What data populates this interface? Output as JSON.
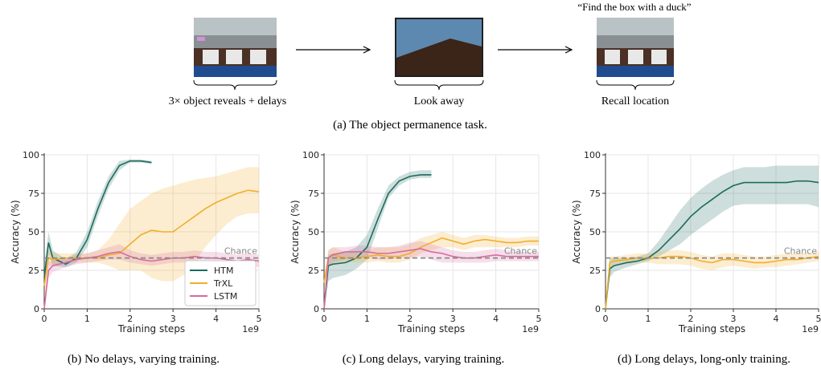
{
  "task": {
    "quote": "“Find the box with a duck”",
    "stages": [
      {
        "label": "3× object reveals + delays"
      },
      {
        "label": "Look away"
      },
      {
        "label": "Recall location"
      }
    ],
    "caption": "(a) The object permanence task."
  },
  "chart_data": [
    {
      "type": "line",
      "caption": "(b) No delays, varying training.",
      "xlabel": "Training steps",
      "ylabel": "Accuracy (%)",
      "x_offset_label": "1e9",
      "x": [
        0,
        0.1,
        0.2,
        0.5,
        0.75,
        1,
        1.25,
        1.5,
        1.75,
        2,
        2.25,
        2.5,
        2.75,
        3,
        3.25,
        3.5,
        3.75,
        4,
        4.25,
        4.5,
        4.75,
        5
      ],
      "xlim": [
        0,
        5
      ],
      "xticks": [
        0,
        1,
        2,
        3,
        4,
        5
      ],
      "ylim": [
        0,
        100
      ],
      "yticks": [
        0,
        25,
        50,
        75,
        100
      ],
      "grid": true,
      "legend": "lower right",
      "hline": 33,
      "hline_label": "Chance",
      "series": [
        {
          "name": "HTM",
          "color": "#1b6b5e",
          "values": [
            20,
            43,
            33,
            29,
            33,
            45,
            65,
            82,
            93,
            96,
            96,
            95,
            null,
            null,
            null,
            null,
            null,
            null,
            null,
            null,
            null,
            null
          ],
          "lower": [
            12,
            35,
            28,
            27,
            30,
            40,
            60,
            78,
            90,
            95,
            95,
            94,
            null,
            null,
            null,
            null,
            null,
            null,
            null,
            null,
            null,
            null
          ],
          "upper": [
            28,
            50,
            38,
            32,
            37,
            50,
            70,
            86,
            96,
            97,
            97,
            96,
            null,
            null,
            null,
            null,
            null,
            null,
            null,
            null,
            null,
            null
          ]
        },
        {
          "name": "TrXL",
          "color": "#f2ad2b",
          "values": [
            15,
            33,
            32,
            33,
            33,
            33,
            33,
            35,
            36,
            42,
            48,
            51,
            50,
            50,
            55,
            60,
            65,
            69,
            72,
            75,
            77,
            76
          ],
          "lower": [
            5,
            28,
            28,
            30,
            30,
            30,
            30,
            28,
            25,
            25,
            25,
            20,
            18,
            18,
            22,
            30,
            40,
            48,
            55,
            60,
            62,
            62
          ],
          "upper": [
            25,
            38,
            36,
            36,
            36,
            36,
            38,
            45,
            55,
            65,
            70,
            75,
            78,
            80,
            82,
            84,
            85,
            86,
            88,
            90,
            92,
            92
          ]
        },
        {
          "name": "LSTM",
          "color": "#d66aa0",
          "values": [
            0,
            25,
            28,
            30,
            32,
            33,
            34,
            36,
            37,
            34,
            32,
            31,
            32,
            33,
            33,
            34,
            33,
            33,
            32,
            31,
            32,
            31
          ],
          "lower": [
            0,
            20,
            24,
            27,
            29,
            30,
            31,
            32,
            32,
            30,
            29,
            28,
            29,
            30,
            30,
            30,
            30,
            29,
            28,
            27,
            28,
            27
          ],
          "upper": [
            5,
            30,
            32,
            33,
            35,
            36,
            38,
            40,
            42,
            38,
            36,
            35,
            36,
            37,
            37,
            38,
            37,
            37,
            36,
            35,
            36,
            35
          ]
        }
      ]
    },
    {
      "type": "line",
      "caption": "(c) Long delays, varying training.",
      "xlabel": "Training steps",
      "ylabel": "Accuracy (%)",
      "x_offset_label": "1e9",
      "x": [
        0,
        0.1,
        0.2,
        0.5,
        0.75,
        1,
        1.25,
        1.5,
        1.75,
        2,
        2.25,
        2.5,
        2.75,
        3,
        3.25,
        3.5,
        3.75,
        4,
        4.25,
        4.5,
        4.75,
        5
      ],
      "xlim": [
        0,
        5
      ],
      "xticks": [
        0,
        1,
        2,
        3,
        4,
        5
      ],
      "ylim": [
        0,
        100
      ],
      "yticks": [
        0,
        25,
        50,
        75,
        100
      ],
      "grid": true,
      "hline": 33,
      "hline_label": "Chance",
      "series": [
        {
          "name": "HTM",
          "color": "#1b6b5e",
          "values": [
            0,
            28,
            29,
            30,
            33,
            40,
            58,
            75,
            83,
            86,
            87,
            87,
            null,
            null,
            null,
            null,
            null,
            null,
            null,
            null,
            null,
            null
          ],
          "lower": [
            0,
            18,
            20,
            22,
            26,
            32,
            52,
            72,
            80,
            84,
            85,
            85,
            null,
            null,
            null,
            null,
            null,
            null,
            null,
            null,
            null,
            null
          ],
          "upper": [
            5,
            35,
            36,
            37,
            40,
            48,
            65,
            80,
            86,
            89,
            90,
            90,
            null,
            null,
            null,
            null,
            null,
            null,
            null,
            null,
            null,
            null
          ]
        },
        {
          "name": "TrXL",
          "color": "#f2ad2b",
          "values": [
            17,
            33,
            35,
            33,
            33,
            34,
            35,
            34,
            34,
            36,
            40,
            43,
            46,
            44,
            42,
            44,
            45,
            44,
            43,
            43,
            44,
            44
          ],
          "lower": [
            10,
            28,
            30,
            30,
            30,
            30,
            31,
            30,
            30,
            32,
            36,
            38,
            40,
            40,
            38,
            40,
            40,
            40,
            40,
            40,
            41,
            41
          ],
          "upper": [
            22,
            38,
            40,
            37,
            37,
            38,
            40,
            40,
            40,
            42,
            46,
            48,
            50,
            48,
            46,
            48,
            48,
            47,
            46,
            46,
            47,
            47
          ]
        },
        {
          "name": "LSTM",
          "color": "#d66aa0",
          "values": [
            0,
            33,
            35,
            37,
            37,
            37,
            36,
            36,
            37,
            38,
            39,
            37,
            36,
            34,
            33,
            33,
            34,
            35,
            34,
            34,
            34,
            34
          ],
          "lower": [
            0,
            28,
            30,
            32,
            33,
            33,
            32,
            32,
            33,
            33,
            34,
            32,
            30,
            30,
            30,
            30,
            30,
            31,
            31,
            31,
            31,
            31
          ],
          "upper": [
            5,
            38,
            40,
            40,
            41,
            41,
            40,
            40,
            41,
            43,
            44,
            42,
            40,
            38,
            37,
            37,
            38,
            39,
            38,
            37,
            37,
            37
          ]
        }
      ]
    },
    {
      "type": "line",
      "caption": "(d) Long delays, long-only training.",
      "xlabel": "Training steps",
      "ylabel": "Accuracy (%)",
      "x_offset_label": "1e9",
      "x": [
        0,
        0.1,
        0.2,
        0.5,
        0.75,
        1,
        1.25,
        1.5,
        1.75,
        2,
        2.25,
        2.5,
        2.75,
        3,
        3.25,
        3.5,
        3.75,
        4,
        4.25,
        4.5,
        4.75,
        5
      ],
      "xlim": [
        0,
        5
      ],
      "xticks": [
        0,
        1,
        2,
        3,
        4,
        5
      ],
      "ylim": [
        0,
        100
      ],
      "yticks": [
        0,
        25,
        50,
        75,
        100
      ],
      "grid": true,
      "hline": 33,
      "hline_label": "Chance",
      "series": [
        {
          "name": "HTM",
          "color": "#1b6b5e",
          "values": [
            0,
            26,
            28,
            30,
            31,
            33,
            38,
            45,
            52,
            60,
            66,
            71,
            76,
            80,
            82,
            82,
            82,
            82,
            82,
            83,
            83,
            82
          ],
          "lower": [
            0,
            20,
            24,
            27,
            29,
            31,
            34,
            38,
            42,
            48,
            53,
            58,
            63,
            67,
            68,
            68,
            68,
            68,
            68,
            68,
            68,
            66
          ],
          "upper": [
            5,
            33,
            33,
            33,
            34,
            36,
            44,
            54,
            64,
            72,
            78,
            83,
            87,
            90,
            92,
            92,
            92,
            93,
            93,
            93,
            93,
            93
          ]
        },
        {
          "name": "TrXL",
          "color": "#f2ad2b",
          "values": [
            0,
            30,
            31,
            32,
            33,
            33,
            33,
            34,
            34,
            33,
            31,
            30,
            32,
            32,
            31,
            30,
            30,
            31,
            32,
            32,
            33,
            34
          ],
          "lower": [
            0,
            26,
            28,
            29,
            30,
            30,
            29,
            29,
            29,
            28,
            26,
            25,
            27,
            28,
            27,
            26,
            27,
            27,
            28,
            29,
            30,
            31
          ],
          "upper": [
            5,
            34,
            34,
            35,
            36,
            36,
            37,
            38,
            38,
            37,
            35,
            34,
            36,
            36,
            35,
            34,
            34,
            35,
            36,
            36,
            36,
            37
          ]
        }
      ]
    }
  ]
}
